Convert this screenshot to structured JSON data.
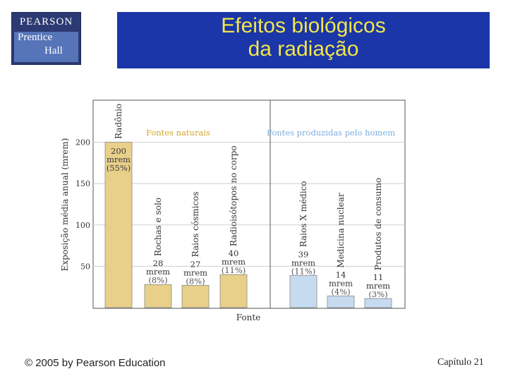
{
  "logo": {
    "line1": "PEARSON",
    "line2": "Prentice",
    "line3": "Hall"
  },
  "slide": {
    "title_line1": "Efeitos biológicos",
    "title_line2": "da radiação"
  },
  "footer": {
    "copyright": "© 2005 by Pearson Education",
    "chapter": "Capítulo 21"
  },
  "colors": {
    "natural": "#e8d08a",
    "artificial": "#c6dbf0",
    "banner": "#1a36a8",
    "title": "#f2e54a"
  },
  "chart_data": {
    "type": "bar",
    "xlabel": "Fonte",
    "ylabel": "Exposição média anual (mrem)",
    "ylim": [
      0,
      250
    ],
    "yticks": [
      50,
      100,
      150,
      200
    ],
    "grid": true,
    "legend": [
      "Fontes naturais",
      "Fontes produzidas pelo homem"
    ],
    "categories": [
      "Radônio",
      "Rochas e solo",
      "Raios cósmicos",
      "Radioisótopos no corpo",
      "Raios X médico",
      "Medicina nuclear",
      "Produtos de consumo"
    ],
    "values": [
      200,
      28,
      27,
      40,
      39,
      14,
      11
    ],
    "groups": [
      "natural",
      "natural",
      "natural",
      "natural",
      "artificial",
      "artificial",
      "artificial"
    ],
    "labels": [
      [
        "200",
        "mrem",
        "(55%)"
      ],
      [
        "28",
        "mrem",
        "(8%)"
      ],
      [
        "27",
        "mrem",
        "(8%)"
      ],
      [
        "40",
        "mrem",
        "(11%)"
      ],
      [
        "39",
        "mrem",
        "(11%)"
      ],
      [
        "14",
        "mrem",
        "(4%)"
      ],
      [
        "11",
        "mrem",
        "(3%)"
      ]
    ]
  }
}
